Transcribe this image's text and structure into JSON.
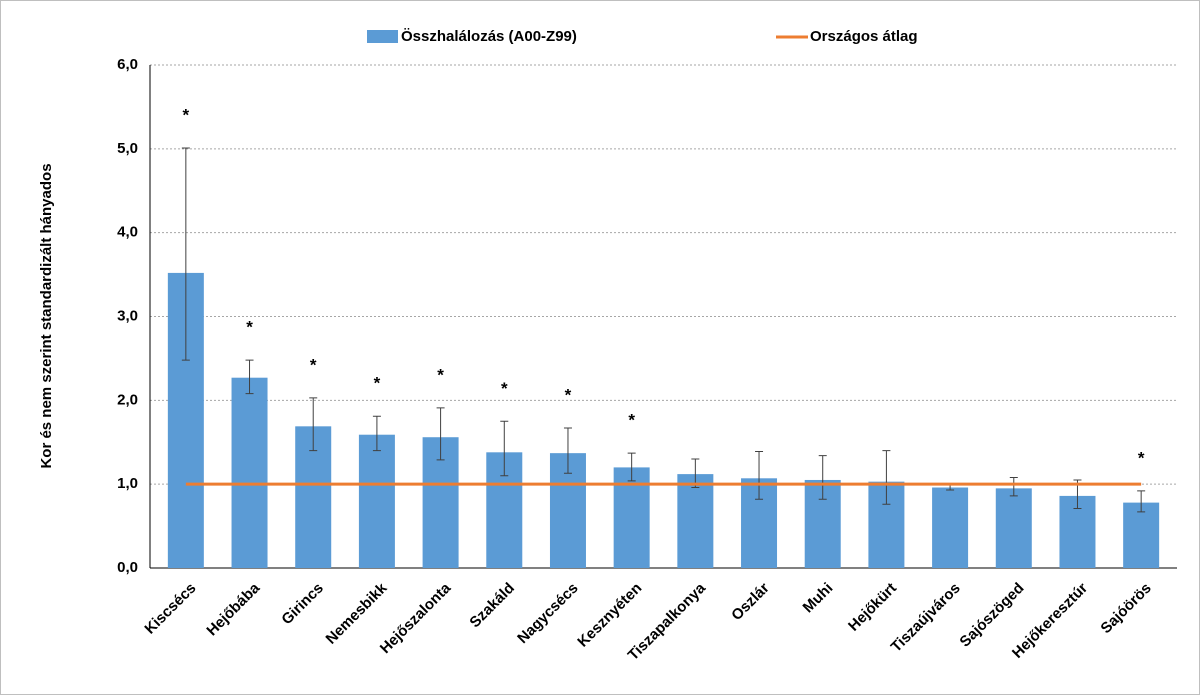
{
  "chart_data": {
    "type": "bar",
    "y_label": "Kor és nem szerint standardizált hányados",
    "categories": [
      "Kiscsécs",
      "Hejőbába",
      "Girincs",
      "Nemesbikk",
      "Hejőszalonta",
      "Szakáld",
      "Nagycsécs",
      "Kesznyéten",
      "Tiszapalkonya",
      "Oszlár",
      "Muhi",
      "Hejőkürt",
      "Tiszaújváros",
      "Sajószöged",
      "Hejőkeresztúr",
      "Sajóörös"
    ],
    "series": [
      {
        "name": "Összhalálozás (A00-Z99)",
        "color": "#5b9bd5",
        "values": [
          3.52,
          2.27,
          1.69,
          1.59,
          1.56,
          1.38,
          1.37,
          1.2,
          1.12,
          1.07,
          1.05,
          1.03,
          0.96,
          0.95,
          0.86,
          0.78
        ],
        "ci_low": [
          2.48,
          2.08,
          1.4,
          1.4,
          1.29,
          1.1,
          1.13,
          1.04,
          0.96,
          0.82,
          0.82,
          0.76,
          0.93,
          0.86,
          0.71,
          0.67
        ],
        "ci_high": [
          5.01,
          2.48,
          2.03,
          1.81,
          1.91,
          1.75,
          1.67,
          1.37,
          1.3,
          1.39,
          1.34,
          1.4,
          0.99,
          1.08,
          1.05,
          0.92
        ],
        "markers": [
          "*",
          "*",
          "*",
          "*",
          "*",
          "*",
          "*",
          "*",
          null,
          null,
          null,
          null,
          null,
          null,
          null,
          "*"
        ]
      },
      {
        "name": "Országos átlag",
        "type": "line",
        "color": "#ed7d31",
        "values": [
          1,
          1,
          1,
          1,
          1,
          1,
          1,
          1,
          1,
          1,
          1,
          1,
          1,
          1,
          1,
          1
        ]
      }
    ],
    "ylim": [
      0,
      6
    ],
    "yticks": [
      {
        "value": 0,
        "label": "0,0"
      },
      {
        "value": 1,
        "label": "1,0"
      },
      {
        "value": 2,
        "label": "2,0"
      },
      {
        "value": 3,
        "label": "3,0"
      },
      {
        "value": 4,
        "label": "4,0"
      },
      {
        "value": 5,
        "label": "5,0"
      },
      {
        "value": 6,
        "label": "6,0"
      }
    ],
    "grid": true,
    "legend": "top"
  }
}
